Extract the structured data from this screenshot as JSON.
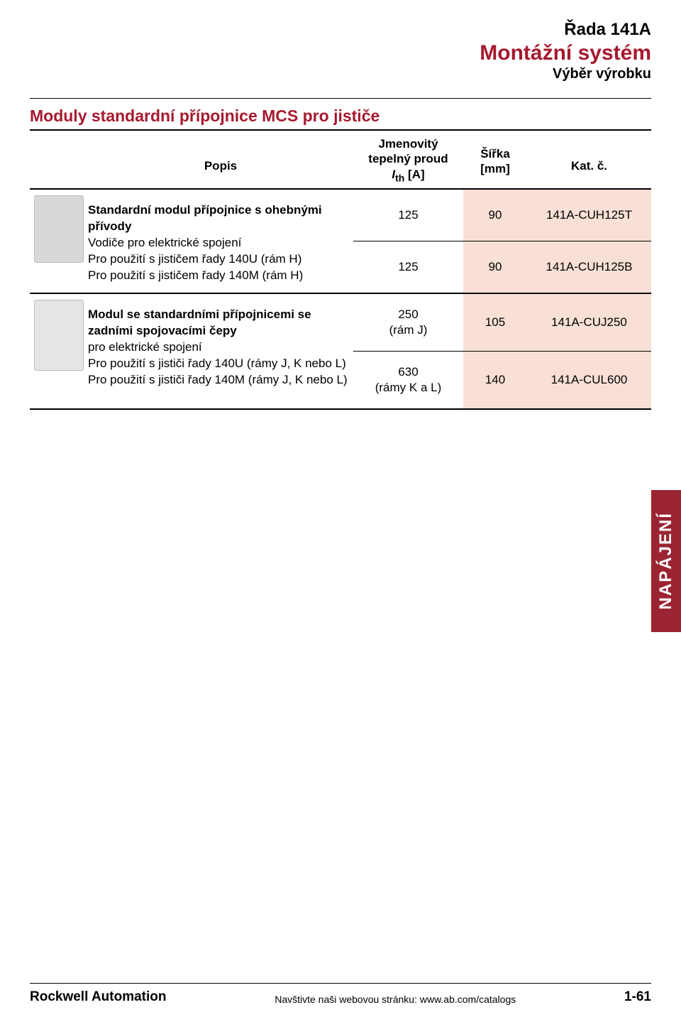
{
  "colors": {
    "brand_red": "#a6192e",
    "tab_red": "#9b2432",
    "cell_peach": "#f8e0d6",
    "text_black": "#000000",
    "rule_black": "#000000"
  },
  "typography": {
    "base_family": "Arial, Helvetica, sans-serif",
    "series_fontsize": 24,
    "system_fontsize": 30,
    "subhead_fontsize": 20,
    "section_title_fontsize": 23,
    "table_header_fontsize": 17,
    "table_body_fontsize": 17,
    "footer_brand_fontsize": 19,
    "footer_mid_fontsize": 14,
    "footer_page_fontsize": 19,
    "side_tab_fontsize": 24
  },
  "header": {
    "series": "Řada 141A",
    "system": "Montážní systém",
    "subhead": "Výběr výrobku"
  },
  "section_title": "Moduly standardní přípojnice MCS pro jističe",
  "table": {
    "type": "table",
    "headers": {
      "desc": "Popis",
      "c1_line1": "Jmenovitý",
      "c1_line2": "tepelný proud",
      "c1_line3_prefix": "I",
      "c1_line3_sub": "th",
      "c1_line3_suffix": " [A]",
      "c2_line1": "Šířka",
      "c2_line2": "[mm]",
      "c3": "Kat. č."
    },
    "groups": [
      {
        "desc_bold": "Standardní modul přípojnice s ohebnými přívody",
        "desc_lines": [
          "Vodiče pro elektrické spojení",
          "Pro použití s jističem řady 140U (rám H)",
          "Pro použití s jističem řady 140M (rám H)"
        ],
        "rows": [
          {
            "c1": "125",
            "c1_note": "",
            "c2": "90",
            "c3": "141A-CUH125T"
          },
          {
            "c1": "125",
            "c1_note": "",
            "c2": "90",
            "c3": "141A-CUH125B"
          }
        ]
      },
      {
        "desc_bold": "Modul se standardními přípojnicemi se zadními spojovacími čepy",
        "desc_lines": [
          "pro elektrické spojení",
          "Pro použití s jističi řady 140U (rámy J, K nebo L)",
          "Pro použití s jističi řady 140M (rámy J, K nebo L)"
        ],
        "rows": [
          {
            "c1": "250",
            "c1_note": "(rám J)",
            "c2": "105",
            "c3": "141A-CUJ250"
          },
          {
            "c1": "630",
            "c1_note": "(rámy K a L)",
            "c2": "140",
            "c3": "141A-CUL600"
          }
        ]
      }
    ]
  },
  "side_tab": "NAPÁJENÍ",
  "footer": {
    "brand": "Rockwell Automation",
    "mid": "Navštivte naši webovou stránku: www.ab.com/catalogs",
    "page": "1-61"
  }
}
